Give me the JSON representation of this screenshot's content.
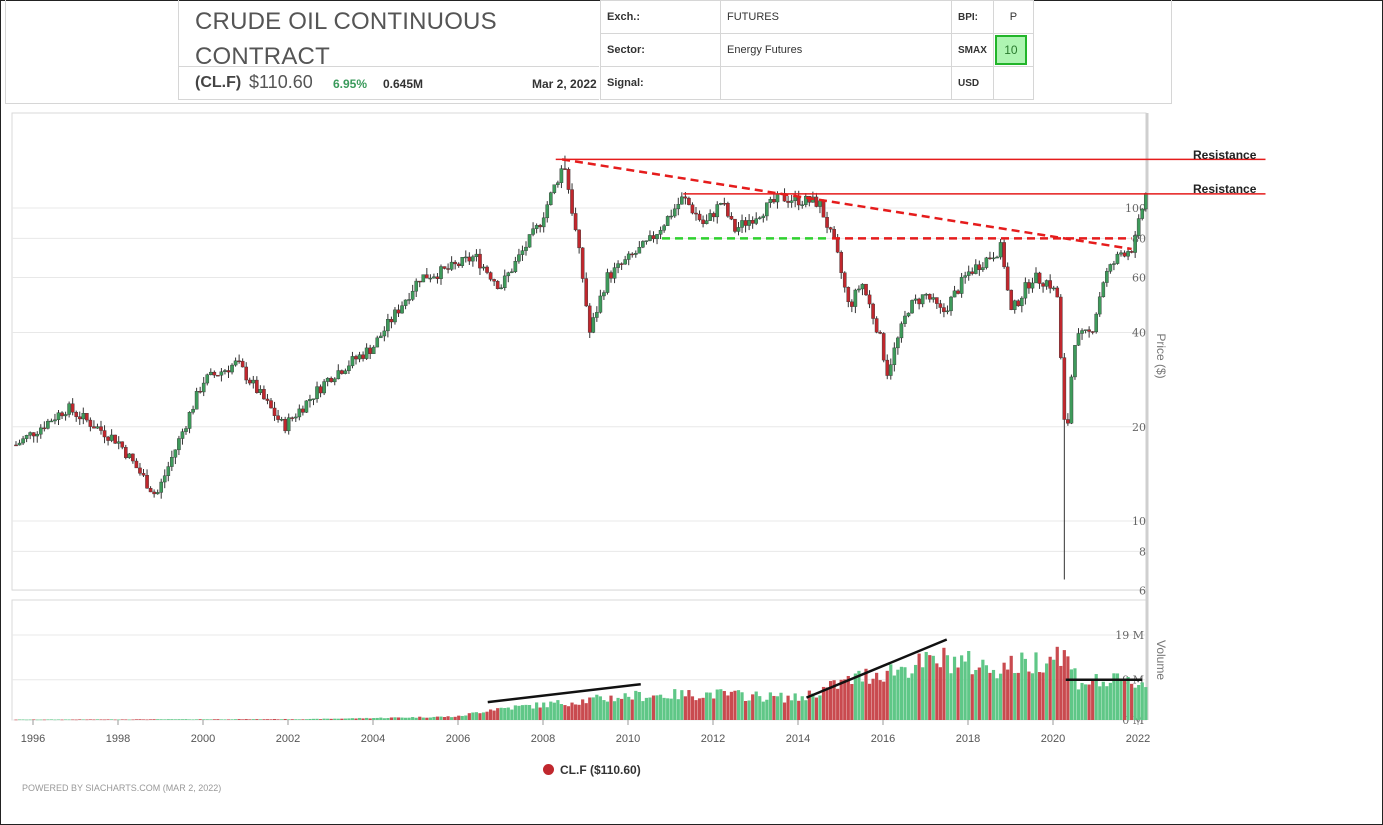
{
  "header": {
    "title": "CRUDE OIL CONTINUOUS CONTRACT",
    "symbol": "(CL.F)",
    "price": "$110.60",
    "change": "6.95%",
    "volume": "0.645M",
    "date": "Mar 2, 2022",
    "exch_label": "Exch.:",
    "exch_value": "FUTURES",
    "sector_label": "Sector:",
    "sector_value": "Energy Futures",
    "signal_label": "Signal:",
    "signal_value": "",
    "bpi_label": "BPI:",
    "bpi_value": "P",
    "smax_label": "SMAX",
    "smax_value": "10",
    "currency": "USD"
  },
  "annotations": {
    "resistance_1": "Resistance",
    "resistance_2": "Resistance"
  },
  "legend": {
    "series": "CL.F ($110.60)"
  },
  "footer": "POWERED BY SIACHARTS.COM (MAR 2, 2022)",
  "colors": {
    "up": "#3e9a5b",
    "down": "#c0272d",
    "trend": "#e51c1c",
    "support": "#2fd12f"
  },
  "chart_data": {
    "type": "candlestick",
    "price_axis": {
      "label": "Price ($)",
      "scale": "log",
      "ticks": [
        6,
        8,
        10,
        20,
        40,
        60,
        80,
        100
      ]
    },
    "volume_axis": {
      "label": "Volume",
      "ticks": [
        "0 M",
        "9 M",
        "19 M"
      ]
    },
    "x_axis": {
      "ticks": [
        "1996",
        "1998",
        "2000",
        "2002",
        "2004",
        "2006",
        "2008",
        "2010",
        "2012",
        "2014",
        "2016",
        "2018",
        "2020",
        "2022"
      ]
    },
    "price_anchors": [
      [
        1995.6,
        17.5
      ],
      [
        1996.8,
        23
      ],
      [
        1998.0,
        18
      ],
      [
        1998.9,
        12
      ],
      [
        2000.0,
        28
      ],
      [
        2000.8,
        32
      ],
      [
        2001.9,
        20
      ],
      [
        2003.0,
        29
      ],
      [
        2004.0,
        36
      ],
      [
        2005.1,
        60
      ],
      [
        2005.7,
        63
      ],
      [
        2006.4,
        70
      ],
      [
        2007.0,
        56
      ],
      [
        2007.9,
        88
      ],
      [
        2008.5,
        140
      ],
      [
        2008.9,
        65
      ],
      [
        2009.1,
        40
      ],
      [
        2009.5,
        60
      ],
      [
        2010.5,
        78
      ],
      [
        2011.3,
        108
      ],
      [
        2011.8,
        88
      ],
      [
        2012.2,
        105
      ],
      [
        2012.5,
        85
      ],
      [
        2013.6,
        108
      ],
      [
        2014.5,
        104
      ],
      [
        2014.9,
        73
      ],
      [
        2015.2,
        48
      ],
      [
        2015.5,
        58
      ],
      [
        2015.9,
        40
      ],
      [
        2016.1,
        30
      ],
      [
        2016.6,
        48
      ],
      [
        2017.0,
        53
      ],
      [
        2017.4,
        46
      ],
      [
        2018.0,
        62
      ],
      [
        2018.8,
        75
      ],
      [
        2019.0,
        46
      ],
      [
        2019.5,
        60
      ],
      [
        2019.9,
        58
      ],
      [
        2020.1,
        52
      ],
      [
        2020.3,
        17
      ],
      [
        2020.5,
        38
      ],
      [
        2020.9,
        40
      ],
      [
        2021.2,
        60
      ],
      [
        2021.6,
        72
      ],
      [
        2021.9,
        75
      ],
      [
        2022.17,
        110.6
      ]
    ],
    "volume_anchors_M": [
      [
        1995.6,
        0.1
      ],
      [
        2002.5,
        0.2
      ],
      [
        2006.0,
        0.8
      ],
      [
        2006.8,
        2.5
      ],
      [
        2008.0,
        3.5
      ],
      [
        2010.0,
        5.5
      ],
      [
        2012.0,
        6.0
      ],
      [
        2014.0,
        5.0
      ],
      [
        2015.5,
        10.0
      ],
      [
        2017.5,
        14.0
      ],
      [
        2018.5,
        12.0
      ],
      [
        2019.5,
        13.0
      ],
      [
        2020.2,
        16.0
      ],
      [
        2020.6,
        9.0
      ],
      [
        2022.2,
        8.5
      ]
    ],
    "extremes": [
      {
        "x": 2008.5,
        "high": 147
      },
      {
        "x": 2020.3,
        "low": 6.5
      }
    ]
  }
}
